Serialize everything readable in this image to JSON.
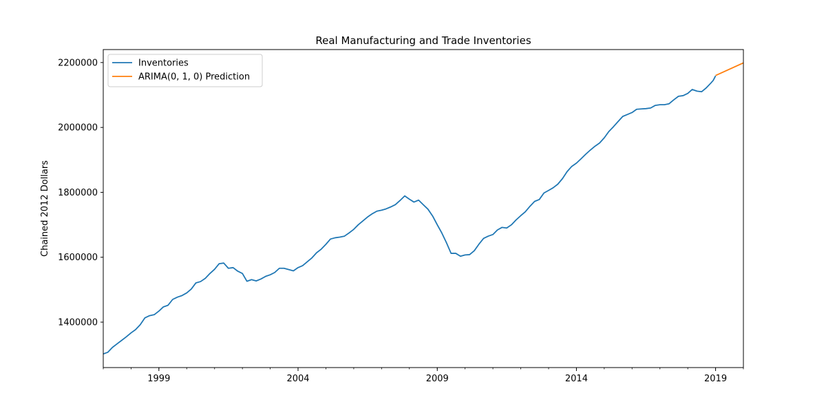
{
  "chart_data": {
    "type": "line",
    "title": "Real Manufacturing and Trade Inventories",
    "xlabel": "",
    "ylabel": "Chained 2012 Dollars",
    "xlim": [
      "1997-01-01",
      "2020-01-01"
    ],
    "ylim": [
      1260000,
      2240000
    ],
    "x_ticks": [
      "1999-01-01",
      "2004-01-01",
      "2009-01-01",
      "2014-01-01",
      "2019-01-01"
    ],
    "x_tick_labels": [
      "1999",
      "2004",
      "2009",
      "2014",
      "2019"
    ],
    "y_ticks": [
      1400000,
      1600000,
      1800000,
      2000000,
      2200000
    ],
    "y_tick_labels": [
      "1400000",
      "1600000",
      "1800000",
      "2000000",
      "2200000"
    ],
    "grid": false,
    "legend_position": "top-left",
    "series": [
      {
        "name": "Inventories",
        "color": "#1f77b4",
        "points": [
          [
            "1997-01-01",
            1302000
          ],
          [
            "1997-03-01",
            1307000
          ],
          [
            "1997-05-01",
            1322000
          ],
          [
            "1997-07-01",
            1333000
          ],
          [
            "1997-09-01",
            1344000
          ],
          [
            "1997-11-01",
            1355000
          ],
          [
            "1998-01-01",
            1367000
          ],
          [
            "1998-03-01",
            1377000
          ],
          [
            "1998-05-01",
            1392000
          ],
          [
            "1998-07-01",
            1413000
          ],
          [
            "1998-09-01",
            1420000
          ],
          [
            "1998-11-01",
            1423000
          ],
          [
            "1999-01-01",
            1434000
          ],
          [
            "1999-03-01",
            1447000
          ],
          [
            "1999-05-01",
            1452000
          ],
          [
            "1999-07-01",
            1470000
          ],
          [
            "1999-09-01",
            1477000
          ],
          [
            "1999-11-01",
            1482000
          ],
          [
            "2000-01-01",
            1490000
          ],
          [
            "2000-03-01",
            1502000
          ],
          [
            "2000-05-01",
            1521000
          ],
          [
            "2000-07-01",
            1525000
          ],
          [
            "2000-09-01",
            1535000
          ],
          [
            "2000-11-01",
            1550000
          ],
          [
            "2001-01-01",
            1563000
          ],
          [
            "2001-03-01",
            1580000
          ],
          [
            "2001-05-01",
            1582000
          ],
          [
            "2001-07-01",
            1566000
          ],
          [
            "2001-09-01",
            1568000
          ],
          [
            "2001-11-01",
            1557000
          ],
          [
            "2002-01-01",
            1550000
          ],
          [
            "2002-03-01",
            1526000
          ],
          [
            "2002-05-01",
            1531000
          ],
          [
            "2002-07-01",
            1527000
          ],
          [
            "2002-09-01",
            1533000
          ],
          [
            "2002-11-01",
            1541000
          ],
          [
            "2003-01-01",
            1546000
          ],
          [
            "2003-03-01",
            1553000
          ],
          [
            "2003-05-01",
            1566000
          ],
          [
            "2003-07-01",
            1566000
          ],
          [
            "2003-09-01",
            1562000
          ],
          [
            "2003-11-01",
            1558000
          ],
          [
            "2004-01-01",
            1568000
          ],
          [
            "2004-03-01",
            1574000
          ],
          [
            "2004-05-01",
            1586000
          ],
          [
            "2004-07-01",
            1598000
          ],
          [
            "2004-09-01",
            1614000
          ],
          [
            "2004-11-01",
            1625000
          ],
          [
            "2005-01-01",
            1640000
          ],
          [
            "2005-03-01",
            1656000
          ],
          [
            "2005-05-01",
            1660000
          ],
          [
            "2005-07-01",
            1662000
          ],
          [
            "2005-09-01",
            1665000
          ],
          [
            "2005-11-01",
            1675000
          ],
          [
            "2006-01-01",
            1686000
          ],
          [
            "2006-03-01",
            1700000
          ],
          [
            "2006-05-01",
            1712000
          ],
          [
            "2006-07-01",
            1724000
          ],
          [
            "2006-09-01",
            1734000
          ],
          [
            "2006-11-01",
            1742000
          ],
          [
            "2007-01-01",
            1745000
          ],
          [
            "2007-03-01",
            1749000
          ],
          [
            "2007-05-01",
            1755000
          ],
          [
            "2007-07-01",
            1762000
          ],
          [
            "2007-09-01",
            1775000
          ],
          [
            "2007-11-01",
            1789000
          ],
          [
            "2008-01-01",
            1779000
          ],
          [
            "2008-03-01",
            1770000
          ],
          [
            "2008-05-01",
            1776000
          ],
          [
            "2008-07-01",
            1762000
          ],
          [
            "2008-09-01",
            1748000
          ],
          [
            "2008-11-01",
            1727000
          ],
          [
            "2009-01-01",
            1700000
          ],
          [
            "2009-03-01",
            1675000
          ],
          [
            "2009-05-01",
            1645000
          ],
          [
            "2009-07-01",
            1612000
          ],
          [
            "2009-09-01",
            1612000
          ],
          [
            "2009-11-01",
            1603000
          ],
          [
            "2010-01-01",
            1607000
          ],
          [
            "2010-03-01",
            1608000
          ],
          [
            "2010-05-01",
            1620000
          ],
          [
            "2010-07-01",
            1640000
          ],
          [
            "2010-09-01",
            1658000
          ],
          [
            "2010-11-01",
            1665000
          ],
          [
            "2011-01-01",
            1670000
          ],
          [
            "2011-03-01",
            1684000
          ],
          [
            "2011-05-01",
            1692000
          ],
          [
            "2011-07-01",
            1690000
          ],
          [
            "2011-09-01",
            1700000
          ],
          [
            "2011-11-01",
            1715000
          ],
          [
            "2012-01-01",
            1728000
          ],
          [
            "2012-03-01",
            1740000
          ],
          [
            "2012-05-01",
            1757000
          ],
          [
            "2012-07-01",
            1772000
          ],
          [
            "2012-09-01",
            1778000
          ],
          [
            "2012-11-01",
            1798000
          ],
          [
            "2013-01-01",
            1806000
          ],
          [
            "2013-03-01",
            1814000
          ],
          [
            "2013-05-01",
            1825000
          ],
          [
            "2013-07-01",
            1842000
          ],
          [
            "2013-09-01",
            1864000
          ],
          [
            "2013-11-01",
            1880000
          ],
          [
            "2014-01-01",
            1890000
          ],
          [
            "2014-03-01",
            1903000
          ],
          [
            "2014-05-01",
            1917000
          ],
          [
            "2014-07-01",
            1930000
          ],
          [
            "2014-09-01",
            1942000
          ],
          [
            "2014-11-01",
            1952000
          ],
          [
            "2015-01-01",
            1968000
          ],
          [
            "2015-03-01",
            1987000
          ],
          [
            "2015-05-01",
            2002000
          ],
          [
            "2015-07-01",
            2018000
          ],
          [
            "2015-09-01",
            2034000
          ],
          [
            "2015-11-01",
            2040000
          ],
          [
            "2016-01-01",
            2046000
          ],
          [
            "2016-03-01",
            2056000
          ],
          [
            "2016-05-01",
            2057000
          ],
          [
            "2016-07-01",
            2058000
          ],
          [
            "2016-09-01",
            2060000
          ],
          [
            "2016-11-01",
            2068000
          ],
          [
            "2017-01-01",
            2070000
          ],
          [
            "2017-03-01",
            2070000
          ],
          [
            "2017-05-01",
            2073000
          ],
          [
            "2017-07-01",
            2085000
          ],
          [
            "2017-09-01",
            2096000
          ],
          [
            "2017-11-01",
            2098000
          ],
          [
            "2018-01-01",
            2105000
          ],
          [
            "2018-03-01",
            2117000
          ],
          [
            "2018-05-01",
            2112000
          ],
          [
            "2018-07-01",
            2110000
          ],
          [
            "2018-09-01",
            2122000
          ],
          [
            "2018-11-01",
            2137000
          ],
          [
            "2018-12-01",
            2145000
          ],
          [
            "2019-01-01",
            2159000
          ]
        ]
      },
      {
        "name": "ARIMA(0, 1, 0) Prediction",
        "color": "#ff7f0e",
        "points": [
          [
            "2019-01-01",
            2160000
          ],
          [
            "2020-01-01",
            2199000
          ]
        ]
      }
    ]
  }
}
